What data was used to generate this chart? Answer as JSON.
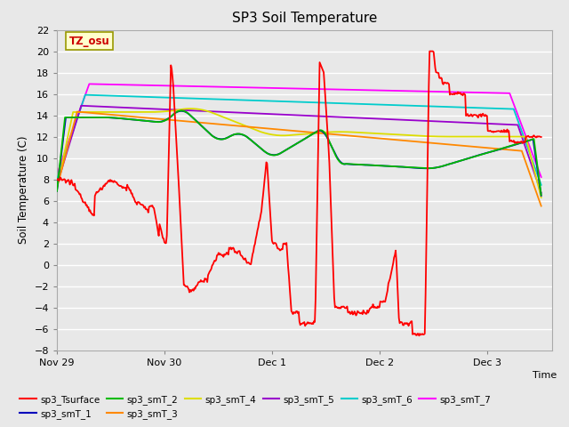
{
  "title": "SP3 Soil Temperature",
  "xlabel": "Time",
  "ylabel": "Soil Temperature (C)",
  "annotation": "TZ_osu",
  "ylim": [
    -8,
    22
  ],
  "yticks": [
    -8,
    -6,
    -4,
    -2,
    0,
    2,
    4,
    6,
    8,
    10,
    12,
    14,
    16,
    18,
    20,
    22
  ],
  "xtick_labels": [
    "Nov 29",
    "Nov 30",
    "Dec 1",
    "Dec 2",
    "Dec 3"
  ],
  "xtick_pos": [
    0,
    1,
    2,
    3,
    4
  ],
  "xlim": [
    0,
    4.6
  ],
  "legend_entries": [
    {
      "label": "sp3_Tsurface",
      "color": "#ff0000"
    },
    {
      "label": "sp3_smT_1",
      "color": "#0000bb"
    },
    {
      "label": "sp3_smT_2",
      "color": "#00bb00"
    },
    {
      "label": "sp3_smT_3",
      "color": "#ff8800"
    },
    {
      "label": "sp3_smT_4",
      "color": "#dddd00"
    },
    {
      "label": "sp3_smT_5",
      "color": "#9900cc"
    },
    {
      "label": "sp3_smT_6",
      "color": "#00cccc"
    },
    {
      "label": "sp3_smT_7",
      "color": "#ff00ff"
    }
  ],
  "fig_facecolor": "#e8e8e8",
  "ax_facecolor": "#e8e8e8",
  "grid_color": "white",
  "annotation_facecolor": "#ffffcc",
  "annotation_edgecolor": "#999900",
  "annotation_textcolor": "#cc0000"
}
